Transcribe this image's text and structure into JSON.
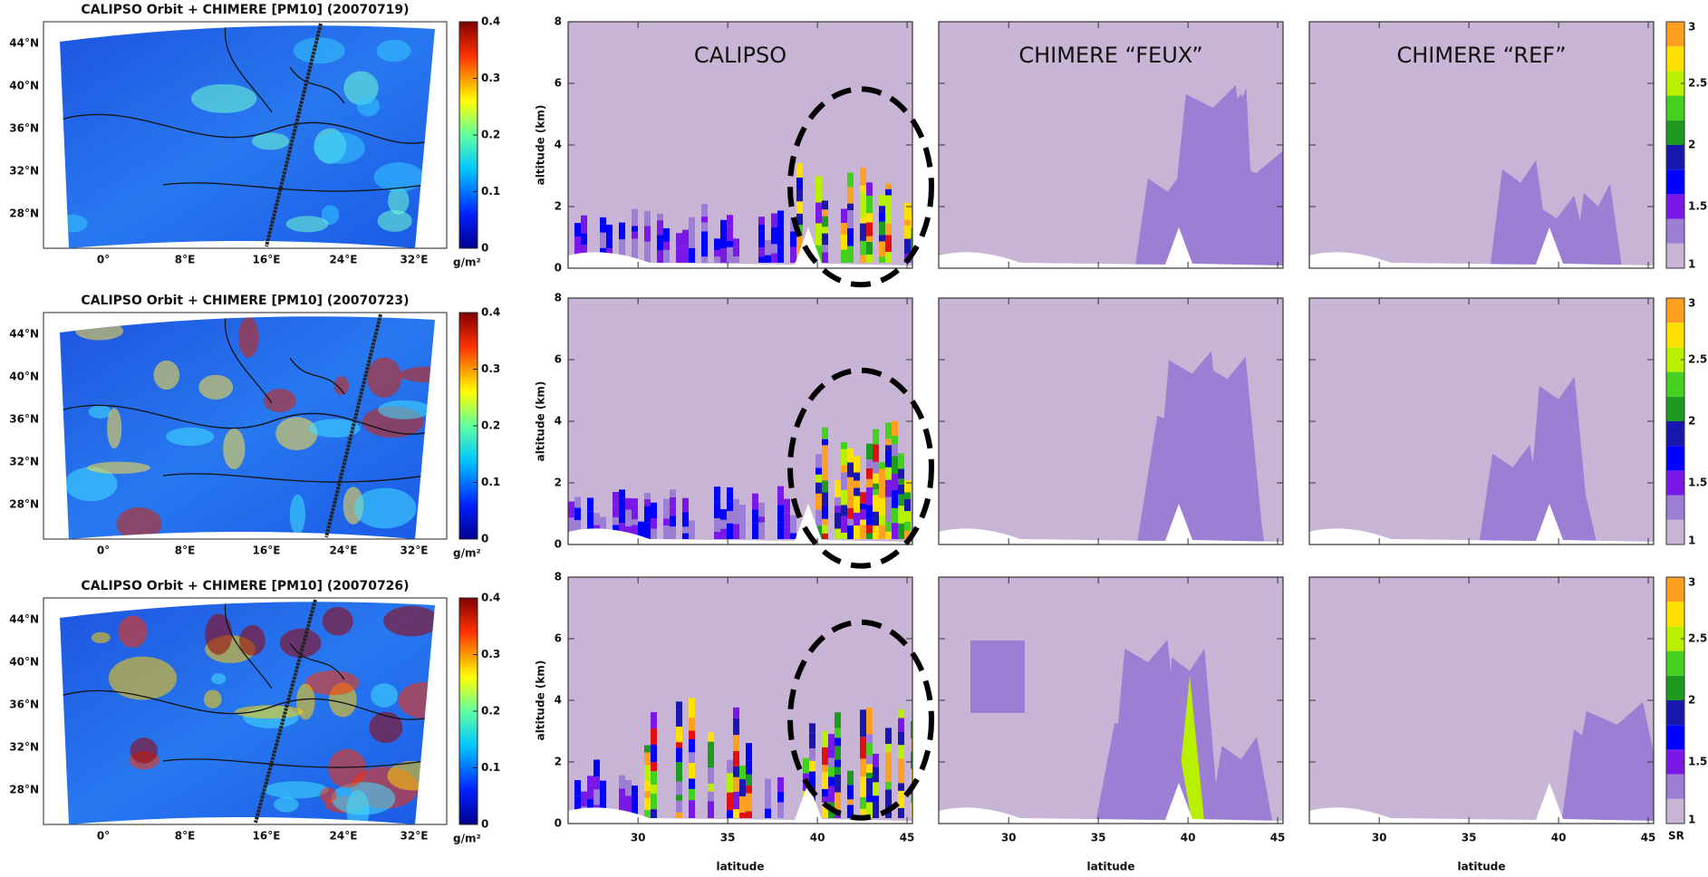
{
  "maps": [
    {
      "title": "CALIPSO Orbit + CHIMERE [PM10] (20070719)"
    },
    {
      "title": "CALIPSO Orbit + CHIMERE [PM10] (20070723)"
    },
    {
      "title": "CALIPSO Orbit + CHIMERE [PM10] (20070726)"
    }
  ],
  "map_lat_labels": [
    "44°N",
    "40°N",
    "36°N",
    "32°N",
    "28°N"
  ],
  "map_lon_labels": [
    "0°",
    "8°E",
    "16°E",
    "24°E",
    "32°E"
  ],
  "map_colorbar": {
    "ticks": [
      0.4,
      0.3,
      0.2,
      0.1,
      0
    ],
    "unit": "g/m²"
  },
  "profiles": {
    "columns": [
      "CALIPSO",
      "CHIMERE “FEUX”",
      "CHIMERE “REF”"
    ],
    "y_label": "altitude (km)",
    "x_label": "latitude",
    "ylim": [
      0,
      8
    ],
    "yticks": [
      0,
      2,
      4,
      6,
      8
    ],
    "xlim": [
      26.1,
      45.3
    ],
    "xticks": [
      30,
      35,
      40,
      45
    ]
  },
  "sr_colorbar": {
    "ticks": [
      3,
      2.5,
      2,
      1.5,
      1
    ],
    "unit": "SR"
  }
}
